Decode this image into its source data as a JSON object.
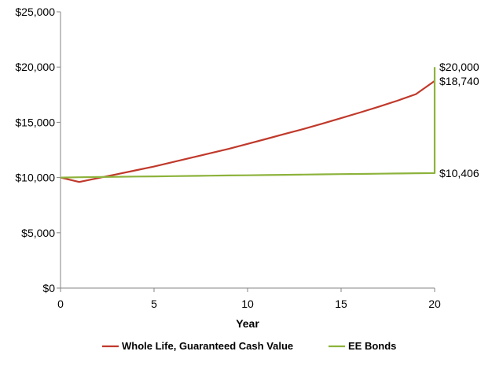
{
  "chart_data": {
    "type": "line",
    "xlabel": "Year",
    "ylabel": "",
    "xlim": [
      0,
      20
    ],
    "ylim": [
      0,
      25000
    ],
    "x_ticks": [
      0,
      5,
      10,
      15,
      20
    ],
    "x_tick_labels": [
      "0",
      "5",
      "10",
      "15",
      "20"
    ],
    "y_ticks": [
      0,
      5000,
      10000,
      15000,
      20000,
      25000
    ],
    "y_tick_labels": [
      "$0",
      "$5,000",
      "$10,000",
      "$15,000",
      "$20,000",
      "$25,000"
    ],
    "grid": false,
    "legend_position": "bottom",
    "series": [
      {
        "name": "Whole Life, Guaranteed Cash Value",
        "color": "#c0392b",
        "points": [
          [
            0,
            10000
          ],
          [
            1,
            9600
          ],
          [
            2,
            9950
          ],
          [
            3,
            10300
          ],
          [
            4,
            10650
          ],
          [
            5,
            11000
          ],
          [
            6,
            11400
          ],
          [
            7,
            11800
          ],
          [
            8,
            12200
          ],
          [
            9,
            12600
          ],
          [
            10,
            13050
          ],
          [
            11,
            13500
          ],
          [
            12,
            13950
          ],
          [
            13,
            14400
          ],
          [
            14,
            14880
          ],
          [
            15,
            15380
          ],
          [
            16,
            15880
          ],
          [
            17,
            16400
          ],
          [
            18,
            16950
          ],
          [
            19,
            17550
          ],
          [
            20,
            18740
          ]
        ]
      },
      {
        "name": "EE Bonds",
        "color": "#8db33c",
        "points": [
          [
            0,
            10000
          ],
          [
            1,
            10030
          ],
          [
            2,
            10050
          ],
          [
            3,
            10070
          ],
          [
            4,
            10090
          ],
          [
            5,
            10110
          ],
          [
            6,
            10130
          ],
          [
            7,
            10150
          ],
          [
            8,
            10170
          ],
          [
            9,
            10190
          ],
          [
            10,
            10210
          ],
          [
            11,
            10230
          ],
          [
            12,
            10250
          ],
          [
            13,
            10270
          ],
          [
            14,
            10290
          ],
          [
            15,
            10310
          ],
          [
            16,
            10330
          ],
          [
            17,
            10350
          ],
          [
            18,
            10370
          ],
          [
            19,
            10390
          ],
          [
            20,
            10406
          ],
          [
            20,
            20000
          ]
        ]
      }
    ],
    "annotations": [
      {
        "x": 20,
        "y": 20000,
        "text": "$20,000"
      },
      {
        "x": 20,
        "y": 18740,
        "text": "$18,740"
      },
      {
        "x": 20,
        "y": 10406,
        "text": "$10,406"
      }
    ]
  }
}
